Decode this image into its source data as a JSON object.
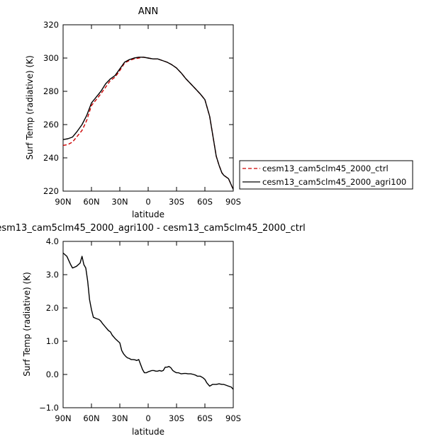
{
  "chart_data": [
    {
      "type": "line",
      "title": "ANN",
      "xlabel": "latitude",
      "ylabel": "Surf Temp (radiative) (K)",
      "xlim": [
        90,
        -90
      ],
      "ylim": [
        220,
        320
      ],
      "xticks": [
        {
          "v": 90,
          "label": "90N"
        },
        {
          "v": 60,
          "label": "60N"
        },
        {
          "v": 30,
          "label": "30N"
        },
        {
          "v": 0,
          "label": "0"
        },
        {
          "v": -30,
          "label": "30S"
        },
        {
          "v": -60,
          "label": "60S"
        },
        {
          "v": -90,
          "label": "90S"
        }
      ],
      "yticks": [
        {
          "v": 220,
          "label": "220"
        },
        {
          "v": 240,
          "label": "240"
        },
        {
          "v": 260,
          "label": "260"
        },
        {
          "v": 280,
          "label": "280"
        },
        {
          "v": 300,
          "label": "300"
        },
        {
          "v": 320,
          "label": "320"
        }
      ],
      "legend_position": "right",
      "series": [
        {
          "name": "cesm13_cam5clm45_2000_ctrl",
          "color": "#cc0000",
          "dash": "dashed",
          "x": [
            90,
            85,
            80,
            75,
            70,
            65,
            60,
            55,
            50,
            45,
            40,
            35,
            30,
            25,
            20,
            15,
            10,
            5,
            0,
            -5,
            -10,
            -15,
            -20,
            -25,
            -30,
            -35,
            -40,
            -45,
            -50,
            -55,
            -60,
            -65,
            -70,
            -72,
            -75,
            -78,
            -80,
            -85,
            -90
          ],
          "y": [
            247.5,
            248.0,
            249.5,
            253.0,
            256.5,
            262.5,
            271.5,
            275.0,
            278.5,
            282.5,
            286.5,
            288.5,
            292.5,
            297.0,
            298.5,
            299.5,
            300.0,
            300.5,
            300.0,
            299.5,
            299.5,
            298.5,
            297.5,
            296.0,
            294.0,
            291.0,
            287.5,
            284.5,
            281.5,
            278.5,
            275.0,
            265.0,
            248.0,
            241.0,
            235.5,
            231.0,
            229.5,
            227.5,
            221.0
          ]
        },
        {
          "name": "cesm13_cam5clm45_2000_agri100",
          "color": "#000000",
          "dash": "solid",
          "x": [
            90,
            85,
            80,
            75,
            70,
            65,
            60,
            55,
            50,
            45,
            40,
            35,
            30,
            25,
            20,
            15,
            10,
            5,
            0,
            -5,
            -10,
            -15,
            -20,
            -25,
            -30,
            -35,
            -40,
            -45,
            -50,
            -55,
            -60,
            -65,
            -70,
            -72,
            -75,
            -78,
            -80,
            -85,
            -90
          ],
          "y": [
            251.0,
            251.5,
            252.5,
            256.0,
            260.0,
            265.5,
            273.0,
            276.5,
            280.0,
            284.5,
            287.5,
            289.5,
            293.5,
            297.5,
            299.0,
            300.0,
            300.5,
            300.5,
            300.0,
            299.5,
            299.5,
            298.5,
            297.5,
            296.0,
            294.0,
            291.0,
            287.5,
            284.5,
            281.5,
            278.5,
            275.0,
            265.0,
            248.0,
            241.0,
            235.5,
            231.0,
            229.5,
            227.5,
            221.0
          ]
        }
      ]
    },
    {
      "type": "line",
      "title": "cesm13_cam5clm45_2000_agri100 - cesm13_cam5clm45_2000_ctrl",
      "xlabel": "latitude",
      "ylabel": "Surf Temp (radiative) (K)",
      "xlim": [
        90,
        -90
      ],
      "ylim": [
        -1.0,
        4.0
      ],
      "xticks": [
        {
          "v": 90,
          "label": "90N"
        },
        {
          "v": 60,
          "label": "60N"
        },
        {
          "v": 30,
          "label": "30N"
        },
        {
          "v": 0,
          "label": "0"
        },
        {
          "v": -30,
          "label": "30S"
        },
        {
          "v": -60,
          "label": "60S"
        },
        {
          "v": -90,
          "label": "90S"
        }
      ],
      "yticks": [
        {
          "v": -1.0,
          "label": "−1.0"
        },
        {
          "v": 0.0,
          "label": "0.0"
        },
        {
          "v": 1.0,
          "label": "1.0"
        },
        {
          "v": 2.0,
          "label": "2.0"
        },
        {
          "v": 3.0,
          "label": "3.0"
        },
        {
          "v": 4.0,
          "label": "4.0"
        }
      ],
      "series": [
        {
          "color": "#000000",
          "dash": "solid",
          "x": [
            90,
            86,
            82,
            80,
            76,
            72,
            70,
            68,
            66,
            64,
            62,
            60,
            58,
            55,
            52,
            50,
            48,
            45,
            42,
            40,
            38,
            35,
            32,
            30,
            28,
            26,
            24,
            22,
            20,
            18,
            16,
            14,
            12,
            10,
            8,
            6,
            4,
            2,
            0,
            -2,
            -4,
            -6,
            -8,
            -10,
            -12,
            -14,
            -16,
            -18,
            -20,
            -22,
            -24,
            -26,
            -28,
            -30,
            -32,
            -35,
            -38,
            -40,
            -42,
            -45,
            -48,
            -50,
            -52,
            -55,
            -58,
            -60,
            -62,
            -65,
            -68,
            -70,
            -72,
            -75,
            -78,
            -80,
            -82,
            -85,
            -88,
            -90
          ],
          "y": [
            3.65,
            3.55,
            3.3,
            3.2,
            3.25,
            3.35,
            3.55,
            3.3,
            3.2,
            2.8,
            2.25,
            1.95,
            1.72,
            1.68,
            1.65,
            1.6,
            1.52,
            1.42,
            1.32,
            1.28,
            1.18,
            1.08,
            1.0,
            0.95,
            0.72,
            0.62,
            0.55,
            0.5,
            0.48,
            0.45,
            0.45,
            0.44,
            0.42,
            0.45,
            0.3,
            0.15,
            0.05,
            0.05,
            0.08,
            0.1,
            0.12,
            0.12,
            0.1,
            0.1,
            0.12,
            0.1,
            0.12,
            0.22,
            0.22,
            0.24,
            0.2,
            0.12,
            0.08,
            0.05,
            0.05,
            0.02,
            0.03,
            0.03,
            0.02,
            0.02,
            0.0,
            -0.02,
            -0.05,
            -0.05,
            -0.1,
            -0.15,
            -0.25,
            -0.35,
            -0.3,
            -0.3,
            -0.3,
            -0.28,
            -0.3,
            -0.3,
            -0.32,
            -0.35,
            -0.38,
            -0.45
          ]
        }
      ]
    }
  ]
}
